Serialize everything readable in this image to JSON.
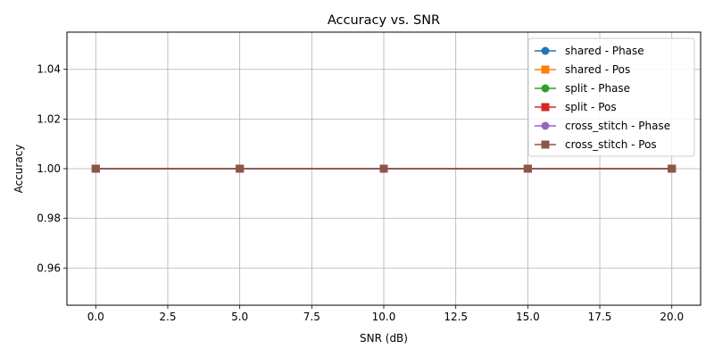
{
  "chart_data": {
    "type": "line",
    "title": "Accuracy vs. SNR",
    "xlabel": "SNR (dB)",
    "ylabel": "Accuracy",
    "xlim": [
      -1,
      21
    ],
    "ylim": [
      0.945,
      1.055
    ],
    "x_ticks": [
      0.0,
      2.5,
      5.0,
      7.5,
      10.0,
      12.5,
      15.0,
      17.5,
      20.0
    ],
    "x_tick_labels": [
      "0.0",
      "2.5",
      "5.0",
      "7.5",
      "10.0",
      "12.5",
      "15.0",
      "17.5",
      "20.0"
    ],
    "y_ticks": [
      0.96,
      0.98,
      1.0,
      1.02,
      1.04
    ],
    "y_tick_labels": [
      "0.96",
      "0.98",
      "1.00",
      "1.02",
      "1.04"
    ],
    "grid": true,
    "legend_position": "top-right",
    "x": [
      0,
      5,
      10,
      15,
      20
    ],
    "series": [
      {
        "name": "shared - Phase",
        "values": [
          1.0,
          1.0,
          1.0,
          1.0,
          1.0
        ],
        "color": "#1f77b4",
        "marker": "circle"
      },
      {
        "name": "shared - Pos",
        "values": [
          1.0,
          1.0,
          1.0,
          1.0,
          1.0
        ],
        "color": "#ff7f0e",
        "marker": "square"
      },
      {
        "name": "split - Phase",
        "values": [
          1.0,
          1.0,
          1.0,
          1.0,
          1.0
        ],
        "color": "#2ca02c",
        "marker": "circle"
      },
      {
        "name": "split - Pos",
        "values": [
          1.0,
          1.0,
          1.0,
          1.0,
          1.0
        ],
        "color": "#d62728",
        "marker": "square"
      },
      {
        "name": "cross_stitch - Phase",
        "values": [
          1.0,
          1.0,
          1.0,
          1.0,
          1.0
        ],
        "color": "#9467bd",
        "marker": "circle"
      },
      {
        "name": "cross_stitch - Pos",
        "values": [
          1.0,
          1.0,
          1.0,
          1.0,
          1.0
        ],
        "color": "#8c564b",
        "marker": "square"
      }
    ]
  }
}
